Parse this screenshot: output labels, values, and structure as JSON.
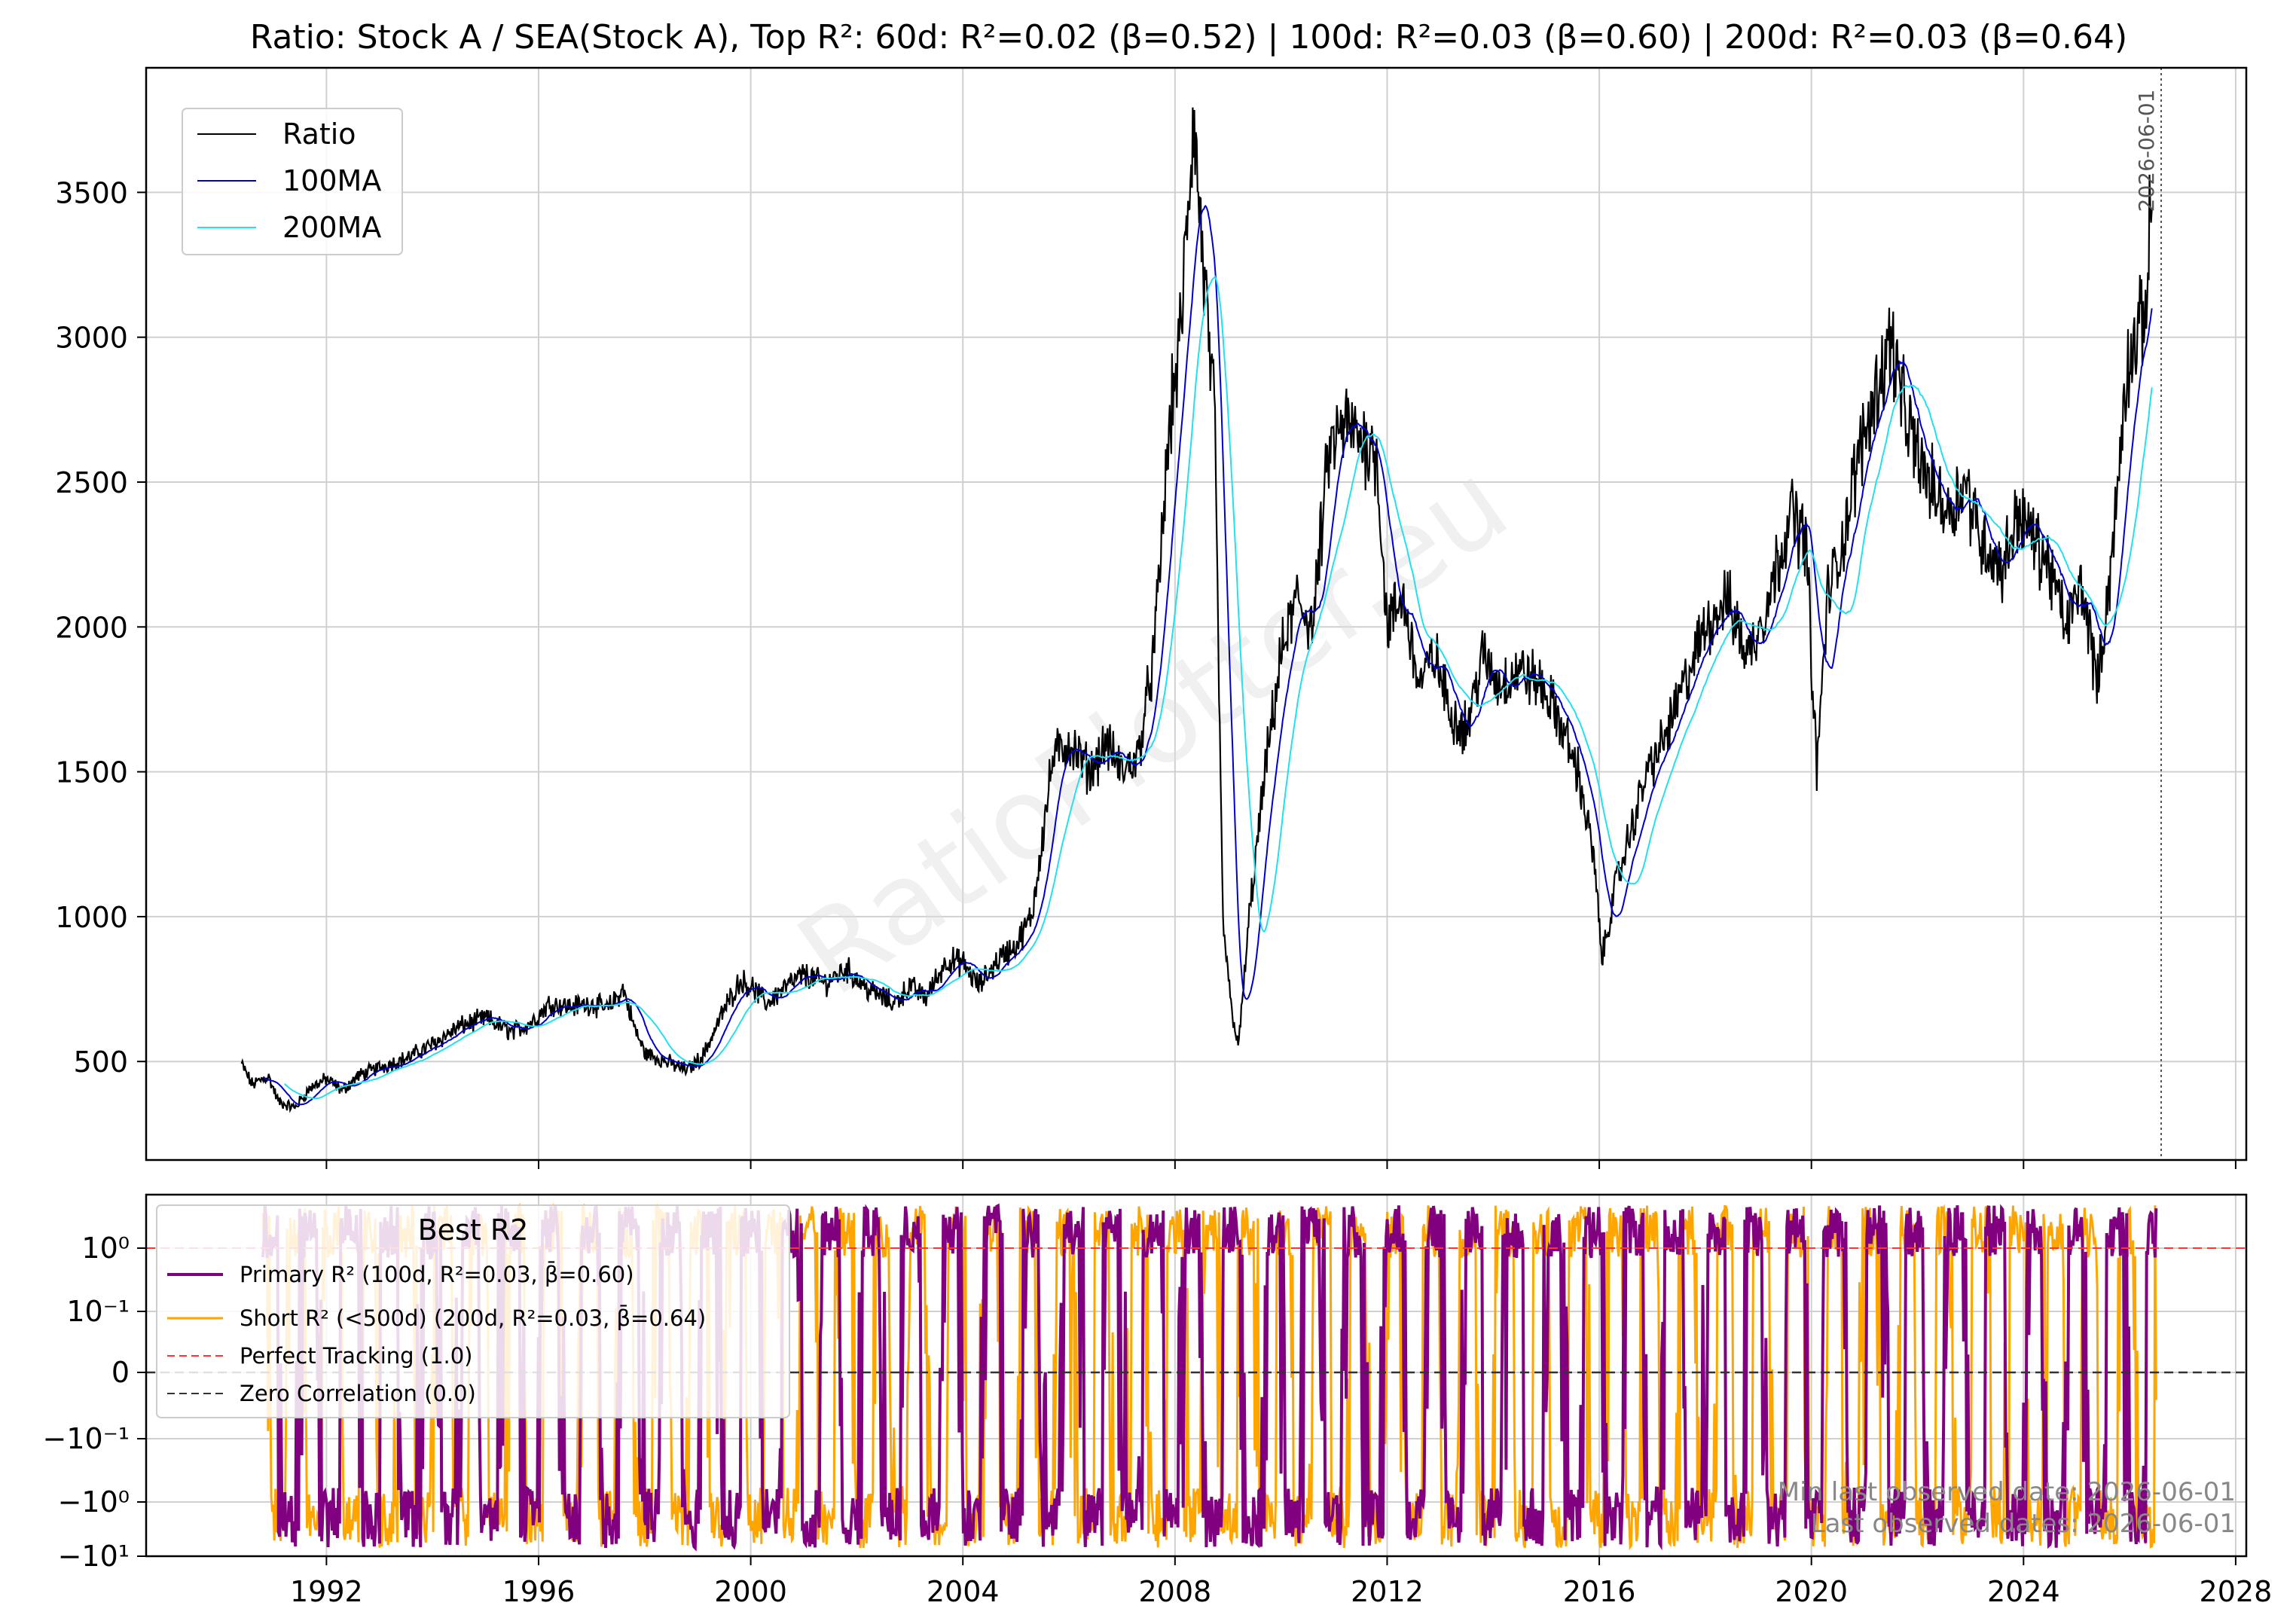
{
  "title": "Ratio: Stock A / SEA(Stock A), Top R²: 60d: R²=0.02 (β=0.52) | 100d: R²=0.03 (β=0.60) | 200d: R²=0.03 (β=0.64)",
  "watermark": "RatioPlotter.eu",
  "vline_label": "2026-06-01",
  "footer": {
    "min_last": "Min last observed date: 2026-06-01",
    "last": "Last observed dates: 2026-06-01"
  },
  "colors": {
    "ratio": "#000000",
    "ma100": "#0000cc",
    "ma200": "#22e0ee",
    "primary": "#800080",
    "short": "#ffa500",
    "perfect": "#ff3333",
    "zero": "#333333"
  },
  "chart_data": [
    {
      "type": "line",
      "ylim": [
        160,
        3930
      ],
      "xlim": [
        1988.6,
        2028.2
      ],
      "y_ticks": [
        500,
        1000,
        1500,
        2000,
        2500,
        3000,
        3500
      ],
      "x_ticks": [
        1992,
        1996,
        2000,
        2004,
        2008,
        2012,
        2016,
        2020,
        2024,
        2028
      ],
      "grid": true,
      "legend_position": "top-left",
      "vline_x": 2026.42,
      "series": [
        {
          "name": "Ratio",
          "role": "ratio"
        },
        {
          "name": "100MA",
          "role": "ma100"
        },
        {
          "name": "200MA",
          "role": "ma200"
        }
      ],
      "ratio_anchors": [
        [
          1990.4,
          490
        ],
        [
          1990.6,
          420
        ],
        [
          1990.9,
          450
        ],
        [
          1991.1,
          360
        ],
        [
          1991.4,
          340
        ],
        [
          1991.7,
          410
        ],
        [
          1992.0,
          440
        ],
        [
          1992.3,
          400
        ],
        [
          1992.6,
          450
        ],
        [
          1993.0,
          480
        ],
        [
          1993.5,
          510
        ],
        [
          1994.0,
          560
        ],
        [
          1994.5,
          620
        ],
        [
          1995.0,
          650
        ],
        [
          1995.5,
          600
        ],
        [
          1995.9,
          640
        ],
        [
          1996.2,
          700
        ],
        [
          1996.6,
          690
        ],
        [
          1997.0,
          700
        ],
        [
          1997.3,
          680
        ],
        [
          1997.6,
          750
        ],
        [
          1997.8,
          620
        ],
        [
          1998.0,
          530
        ],
        [
          1998.4,
          500
        ],
        [
          1998.8,
          470
        ],
        [
          1999.1,
          520
        ],
        [
          1999.5,
          680
        ],
        [
          1999.8,
          780
        ],
        [
          2000.0,
          760
        ],
        [
          2000.3,
          700
        ],
        [
          2000.6,
          750
        ],
        [
          2001.0,
          800
        ],
        [
          2001.4,
          770
        ],
        [
          2001.8,
          820
        ],
        [
          2002.2,
          750
        ],
        [
          2002.7,
          700
        ],
        [
          2003.0,
          760
        ],
        [
          2003.3,
          720
        ],
        [
          2003.7,
          850
        ],
        [
          2004.0,
          840
        ],
        [
          2004.3,
          760
        ],
        [
          2004.7,
          860
        ],
        [
          2005.0,
          900
        ],
        [
          2005.3,
          1000
        ],
        [
          2005.7,
          1550
        ],
        [
          2006.0,
          1600
        ],
        [
          2006.4,
          1500
        ],
        [
          2006.7,
          1600
        ],
        [
          2007.0,
          1500
        ],
        [
          2007.3,
          1550
        ],
        [
          2007.6,
          1900
        ],
        [
          2007.9,
          2700
        ],
        [
          2008.1,
          3000
        ],
        [
          2008.35,
          3750
        ],
        [
          2008.55,
          3200
        ],
        [
          2008.75,
          2700
        ],
        [
          2008.9,
          1000
        ],
        [
          2009.05,
          700
        ],
        [
          2009.2,
          550
        ],
        [
          2009.4,
          1000
        ],
        [
          2009.7,
          1500
        ],
        [
          2010.0,
          1900
        ],
        [
          2010.3,
          2100
        ],
        [
          2010.6,
          2000
        ],
        [
          2010.9,
          2600
        ],
        [
          2011.2,
          2700
        ],
        [
          2011.5,
          2650
        ],
        [
          2011.8,
          2600
        ],
        [
          2012.0,
          2000
        ],
        [
          2012.3,
          2100
        ],
        [
          2012.6,
          1800
        ],
        [
          2012.9,
          1900
        ],
        [
          2013.2,
          1700
        ],
        [
          2013.5,
          1650
        ],
        [
          2013.8,
          1900
        ],
        [
          2014.1,
          1800
        ],
        [
          2014.5,
          1850
        ],
        [
          2014.9,
          1800
        ],
        [
          2015.2,
          1700
        ],
        [
          2015.6,
          1500
        ],
        [
          2015.9,
          1200
        ],
        [
          2016.05,
          850
        ],
        [
          2016.3,
          1100
        ],
        [
          2016.6,
          1300
        ],
        [
          2016.9,
          1500
        ],
        [
          2017.2,
          1600
        ],
        [
          2017.6,
          1800
        ],
        [
          2018.0,
          2000
        ],
        [
          2018.4,
          2100
        ],
        [
          2018.8,
          1900
        ],
        [
          2019.2,
          2100
        ],
        [
          2019.6,
          2400
        ],
        [
          2019.9,
          2300
        ],
        [
          2020.1,
          1500
        ],
        [
          2020.3,
          2100
        ],
        [
          2020.6,
          2300
        ],
        [
          2020.9,
          2600
        ],
        [
          2021.2,
          2800
        ],
        [
          2021.5,
          3000
        ],
        [
          2021.8,
          2700
        ],
        [
          2022.2,
          2500
        ],
        [
          2022.6,
          2400
        ],
        [
          2022.9,
          2500
        ],
        [
          2023.2,
          2300
        ],
        [
          2023.6,
          2200
        ],
        [
          2023.9,
          2400
        ],
        [
          2024.2,
          2300
        ],
        [
          2024.5,
          2200
        ],
        [
          2024.8,
          2000
        ],
        [
          2025.1,
          2150
        ],
        [
          2025.4,
          1800
        ],
        [
          2025.7,
          2300
        ],
        [
          2025.95,
          2900
        ],
        [
          2026.15,
          3000
        ],
        [
          2026.3,
          3100
        ],
        [
          2026.42,
          3500
        ]
      ]
    },
    {
      "type": "line",
      "title": "Best R2",
      "y_scale": "symlog",
      "y_tick_labels": [
        "10⁰",
        "10⁻¹",
        "0",
        "−10⁻¹",
        "−10⁰",
        "−10¹"
      ],
      "y_ticks": [
        1,
        0.1,
        0,
        -0.1,
        -1,
        -10
      ],
      "xlim": [
        1988.6,
        2028.2
      ],
      "x_ticks": [
        1992,
        1996,
        2000,
        2004,
        2008,
        2012,
        2016,
        2020,
        2024,
        2028
      ],
      "x_tick_labels": [
        "1992",
        "1996",
        "2000",
        "2004",
        "2008",
        "2012",
        "2016",
        "2020",
        "2024",
        "2028"
      ],
      "hlines": [
        {
          "y": 1,
          "label": "Perfect Tracking (1.0)"
        },
        {
          "y": 0,
          "label": "Zero Correlation (0.0)"
        }
      ],
      "legend_position": "top-left",
      "series": [
        {
          "name": "Primary R² (100d, R²=0.03, β̄=0.60)",
          "role": "primary"
        },
        {
          "name": "Short R² (<500d) (200d, R²=0.03, β̄=0.64)",
          "role": "short"
        }
      ],
      "start": 1990.8,
      "end": 2026.5
    }
  ]
}
